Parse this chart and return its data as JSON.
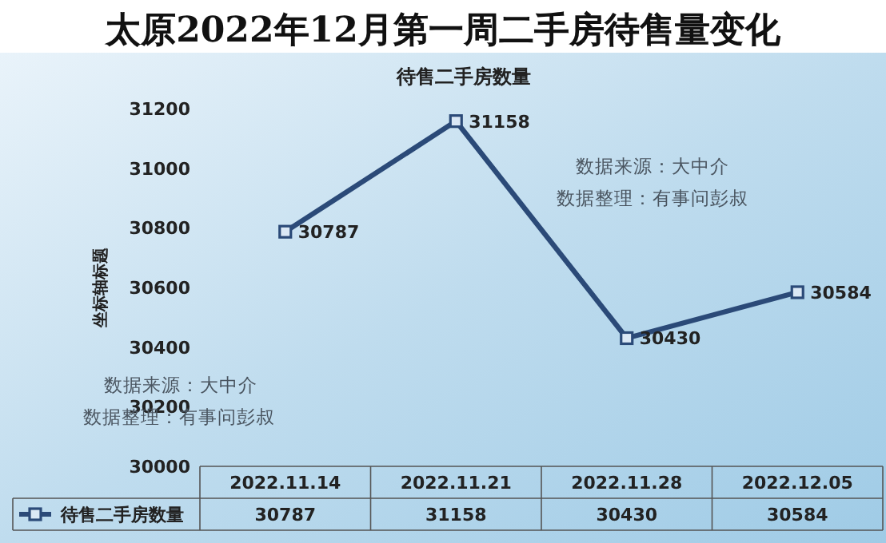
{
  "chart_data": {
    "type": "line",
    "title": "太原2022年12月第一周二手房待售量变化",
    "subtitle": "待售二手房数量",
    "ylabel": "坐标轴标题",
    "categories": [
      "2022.11.14",
      "2022.11.21",
      "2022.11.28",
      "2022.12.05"
    ],
    "series": [
      {
        "name": "待售二手房数量",
        "color": "#2b4a78",
        "values": [
          30787,
          31158,
          30430,
          30584
        ]
      }
    ],
    "ylim": [
      30000,
      31200
    ],
    "yticks": [
      30000,
      30200,
      30400,
      30600,
      30800,
      31000,
      31200
    ],
    "data_labels": true,
    "value_labels": [
      "30787",
      "31158",
      "30430",
      "30584"
    ],
    "marker": "square",
    "line_style": "solid",
    "legend": "bottom",
    "grid": false,
    "annotations": [
      "数据来源：大中介",
      "数据整理：有事问彭叔",
      "数据来源：大中介",
      "数据整理：有事问彭叔"
    ]
  }
}
